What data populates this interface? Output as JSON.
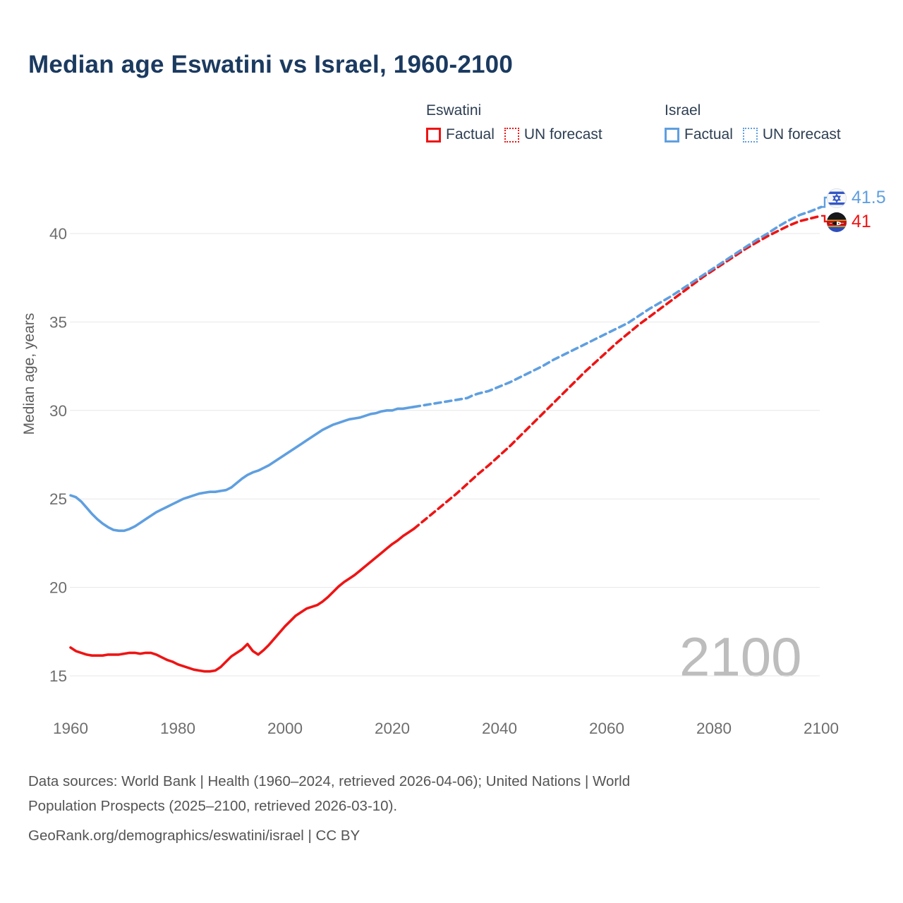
{
  "title": "Median age Eswatini vs Israel, 1960-2100",
  "colors": {
    "eswatini": "#ee1414",
    "israel": "#5f9fe0",
    "grid": "#e7e7e7",
    "tick_text": "#6e6e6e",
    "title_text": "#1b3a60",
    "watermark_text": "#bdbdbd"
  },
  "legend": {
    "groups": [
      {
        "country": "Eswatini",
        "items": [
          {
            "label": "Factual",
            "style": "solid"
          },
          {
            "label": "UN forecast",
            "style": "dashed"
          }
        ]
      },
      {
        "country": "Israel",
        "items": [
          {
            "label": "Factual",
            "style": "solid"
          },
          {
            "label": "UN forecast",
            "style": "dashed"
          }
        ]
      }
    ]
  },
  "axes": {
    "y_title": "Median age, years",
    "y_ticks": [
      15,
      20,
      25,
      30,
      35,
      40
    ],
    "x_ticks": [
      1960,
      1980,
      2000,
      2020,
      2040,
      2060,
      2080,
      2100
    ]
  },
  "watermark": "2100",
  "end_labels": [
    {
      "country": "Israel",
      "value": "41.5"
    },
    {
      "country": "Eswatini",
      "value": "41"
    }
  ],
  "footer": {
    "line1": "Data sources: World Bank | Health (1960–2024, retrieved 2026-04-06); United Nations | World",
    "line2": "Population Prospects (2025–2100, retrieved 2026-03-10).",
    "line3": "GeoRank.org/demographics/eswatini/israel | CC BY"
  },
  "chart_data": {
    "type": "line",
    "title": "Median age Eswatini vs Israel, 1960-2100",
    "xlabel": "",
    "ylabel": "Median age, years",
    "x_range": [
      1960,
      2100
    ],
    "ylim": [
      15,
      42
    ],
    "x_ticks": [
      1960,
      1980,
      2000,
      2020,
      2040,
      2060,
      2080,
      2100
    ],
    "y_ticks": [
      15,
      20,
      25,
      30,
      35,
      40
    ],
    "grid": "horizontal",
    "legend_position": "top",
    "series": [
      {
        "name": "Eswatini — Factual",
        "country": "Eswatini",
        "kind": "factual",
        "color": "#ee1414",
        "dashed": false,
        "points": [
          [
            1960,
            16.6
          ],
          [
            1961,
            16.4
          ],
          [
            1962,
            16.3
          ],
          [
            1963,
            16.2
          ],
          [
            1964,
            16.15
          ],
          [
            1965,
            16.15
          ],
          [
            1966,
            16.15
          ],
          [
            1967,
            16.2
          ],
          [
            1968,
            16.2
          ],
          [
            1969,
            16.2
          ],
          [
            1970,
            16.25
          ],
          [
            1971,
            16.3
          ],
          [
            1972,
            16.3
          ],
          [
            1973,
            16.25
          ],
          [
            1974,
            16.3
          ],
          [
            1975,
            16.3
          ],
          [
            1976,
            16.2
          ],
          [
            1977,
            16.05
          ],
          [
            1978,
            15.9
          ],
          [
            1979,
            15.8
          ],
          [
            1980,
            15.65
          ],
          [
            1981,
            15.55
          ],
          [
            1982,
            15.45
          ],
          [
            1983,
            15.35
          ],
          [
            1984,
            15.3
          ],
          [
            1985,
            15.25
          ],
          [
            1986,
            15.25
          ],
          [
            1987,
            15.3
          ],
          [
            1988,
            15.5
          ],
          [
            1989,
            15.8
          ],
          [
            1990,
            16.1
          ],
          [
            1991,
            16.3
          ],
          [
            1992,
            16.5
          ],
          [
            1993,
            16.8
          ],
          [
            1994,
            16.4
          ],
          [
            1995,
            16.2
          ],
          [
            1996,
            16.45
          ],
          [
            1997,
            16.75
          ],
          [
            1998,
            17.1
          ],
          [
            1999,
            17.45
          ],
          [
            2000,
            17.8
          ],
          [
            2001,
            18.1
          ],
          [
            2002,
            18.4
          ],
          [
            2003,
            18.6
          ],
          [
            2004,
            18.8
          ],
          [
            2005,
            18.9
          ],
          [
            2006,
            19.0
          ],
          [
            2007,
            19.2
          ],
          [
            2008,
            19.45
          ],
          [
            2009,
            19.75
          ],
          [
            2010,
            20.05
          ],
          [
            2011,
            20.3
          ],
          [
            2012,
            20.5
          ],
          [
            2013,
            20.7
          ],
          [
            2014,
            20.95
          ],
          [
            2015,
            21.2
          ],
          [
            2016,
            21.45
          ],
          [
            2017,
            21.7
          ],
          [
            2018,
            21.95
          ],
          [
            2019,
            22.2
          ],
          [
            2020,
            22.45
          ],
          [
            2021,
            22.65
          ],
          [
            2022,
            22.9
          ],
          [
            2023,
            23.1
          ],
          [
            2024,
            23.3
          ]
        ]
      },
      {
        "name": "Eswatini — UN forecast",
        "country": "Eswatini",
        "kind": "forecast",
        "color": "#ee1414",
        "dashed": true,
        "points": [
          [
            2024,
            23.3
          ],
          [
            2026,
            23.8
          ],
          [
            2028,
            24.3
          ],
          [
            2030,
            24.8
          ],
          [
            2032,
            25.3
          ],
          [
            2034,
            25.85
          ],
          [
            2036,
            26.4
          ],
          [
            2038,
            26.9
          ],
          [
            2040,
            27.45
          ],
          [
            2042,
            28.0
          ],
          [
            2044,
            28.6
          ],
          [
            2046,
            29.2
          ],
          [
            2048,
            29.8
          ],
          [
            2050,
            30.4
          ],
          [
            2052,
            31.0
          ],
          [
            2054,
            31.6
          ],
          [
            2056,
            32.2
          ],
          [
            2058,
            32.75
          ],
          [
            2060,
            33.3
          ],
          [
            2062,
            33.85
          ],
          [
            2064,
            34.35
          ],
          [
            2066,
            34.85
          ],
          [
            2068,
            35.3
          ],
          [
            2070,
            35.75
          ],
          [
            2072,
            36.2
          ],
          [
            2074,
            36.65
          ],
          [
            2076,
            37.1
          ],
          [
            2078,
            37.55
          ],
          [
            2080,
            37.95
          ],
          [
            2082,
            38.35
          ],
          [
            2084,
            38.75
          ],
          [
            2086,
            39.15
          ],
          [
            2088,
            39.5
          ],
          [
            2090,
            39.85
          ],
          [
            2092,
            40.15
          ],
          [
            2094,
            40.45
          ],
          [
            2096,
            40.7
          ],
          [
            2098,
            40.85
          ],
          [
            2100,
            41.0
          ]
        ]
      },
      {
        "name": "Israel — Factual",
        "country": "Israel",
        "kind": "factual",
        "color": "#5f9fe0",
        "dashed": false,
        "points": [
          [
            1960,
            25.2
          ],
          [
            1961,
            25.1
          ],
          [
            1962,
            24.85
          ],
          [
            1963,
            24.5
          ],
          [
            1964,
            24.15
          ],
          [
            1965,
            23.85
          ],
          [
            1966,
            23.6
          ],
          [
            1967,
            23.4
          ],
          [
            1968,
            23.25
          ],
          [
            1969,
            23.2
          ],
          [
            1970,
            23.2
          ],
          [
            1971,
            23.3
          ],
          [
            1972,
            23.45
          ],
          [
            1973,
            23.65
          ],
          [
            1974,
            23.85
          ],
          [
            1975,
            24.05
          ],
          [
            1976,
            24.25
          ],
          [
            1977,
            24.4
          ],
          [
            1978,
            24.55
          ],
          [
            1979,
            24.7
          ],
          [
            1980,
            24.85
          ],
          [
            1981,
            25.0
          ],
          [
            1982,
            25.1
          ],
          [
            1983,
            25.2
          ],
          [
            1984,
            25.3
          ],
          [
            1985,
            25.35
          ],
          [
            1986,
            25.4
          ],
          [
            1987,
            25.4
          ],
          [
            1988,
            25.45
          ],
          [
            1989,
            25.5
          ],
          [
            1990,
            25.65
          ],
          [
            1991,
            25.9
          ],
          [
            1992,
            26.15
          ],
          [
            1993,
            26.35
          ],
          [
            1994,
            26.5
          ],
          [
            1995,
            26.6
          ],
          [
            1996,
            26.75
          ],
          [
            1997,
            26.9
          ],
          [
            1998,
            27.1
          ],
          [
            1999,
            27.3
          ],
          [
            2000,
            27.5
          ],
          [
            2001,
            27.7
          ],
          [
            2002,
            27.9
          ],
          [
            2003,
            28.1
          ],
          [
            2004,
            28.3
          ],
          [
            2005,
            28.5
          ],
          [
            2006,
            28.7
          ],
          [
            2007,
            28.9
          ],
          [
            2008,
            29.05
          ],
          [
            2009,
            29.2
          ],
          [
            2010,
            29.3
          ],
          [
            2011,
            29.4
          ],
          [
            2012,
            29.5
          ],
          [
            2013,
            29.55
          ],
          [
            2014,
            29.6
          ],
          [
            2015,
            29.7
          ],
          [
            2016,
            29.8
          ],
          [
            2017,
            29.85
          ],
          [
            2018,
            29.95
          ],
          [
            2019,
            30.0
          ],
          [
            2020,
            30.0
          ],
          [
            2021,
            30.1
          ],
          [
            2022,
            30.1
          ],
          [
            2023,
            30.15
          ],
          [
            2024,
            30.2
          ]
        ]
      },
      {
        "name": "Israel — UN forecast",
        "country": "Israel",
        "kind": "forecast",
        "color": "#5f9fe0",
        "dashed": true,
        "points": [
          [
            2024,
            30.2
          ],
          [
            2026,
            30.3
          ],
          [
            2028,
            30.4
          ],
          [
            2030,
            30.5
          ],
          [
            2032,
            30.6
          ],
          [
            2034,
            30.7
          ],
          [
            2035,
            30.85
          ],
          [
            2036,
            30.95
          ],
          [
            2038,
            31.1
          ],
          [
            2040,
            31.35
          ],
          [
            2042,
            31.6
          ],
          [
            2044,
            31.9
          ],
          [
            2046,
            32.2
          ],
          [
            2048,
            32.5
          ],
          [
            2050,
            32.85
          ],
          [
            2052,
            33.15
          ],
          [
            2054,
            33.45
          ],
          [
            2056,
            33.75
          ],
          [
            2058,
            34.05
          ],
          [
            2060,
            34.35
          ],
          [
            2062,
            34.65
          ],
          [
            2064,
            34.95
          ],
          [
            2066,
            35.35
          ],
          [
            2068,
            35.75
          ],
          [
            2070,
            36.1
          ],
          [
            2072,
            36.45
          ],
          [
            2074,
            36.85
          ],
          [
            2076,
            37.25
          ],
          [
            2078,
            37.65
          ],
          [
            2080,
            38.05
          ],
          [
            2082,
            38.45
          ],
          [
            2084,
            38.85
          ],
          [
            2086,
            39.25
          ],
          [
            2088,
            39.65
          ],
          [
            2090,
            40.0
          ],
          [
            2092,
            40.4
          ],
          [
            2094,
            40.75
          ],
          [
            2096,
            41.05
          ],
          [
            2098,
            41.25
          ],
          [
            2100,
            41.5
          ]
        ]
      }
    ],
    "end_labels": [
      {
        "series": "Israel",
        "year": 2100,
        "value": 41.5
      },
      {
        "series": "Eswatini",
        "year": 2100,
        "value": 41.0
      }
    ]
  }
}
